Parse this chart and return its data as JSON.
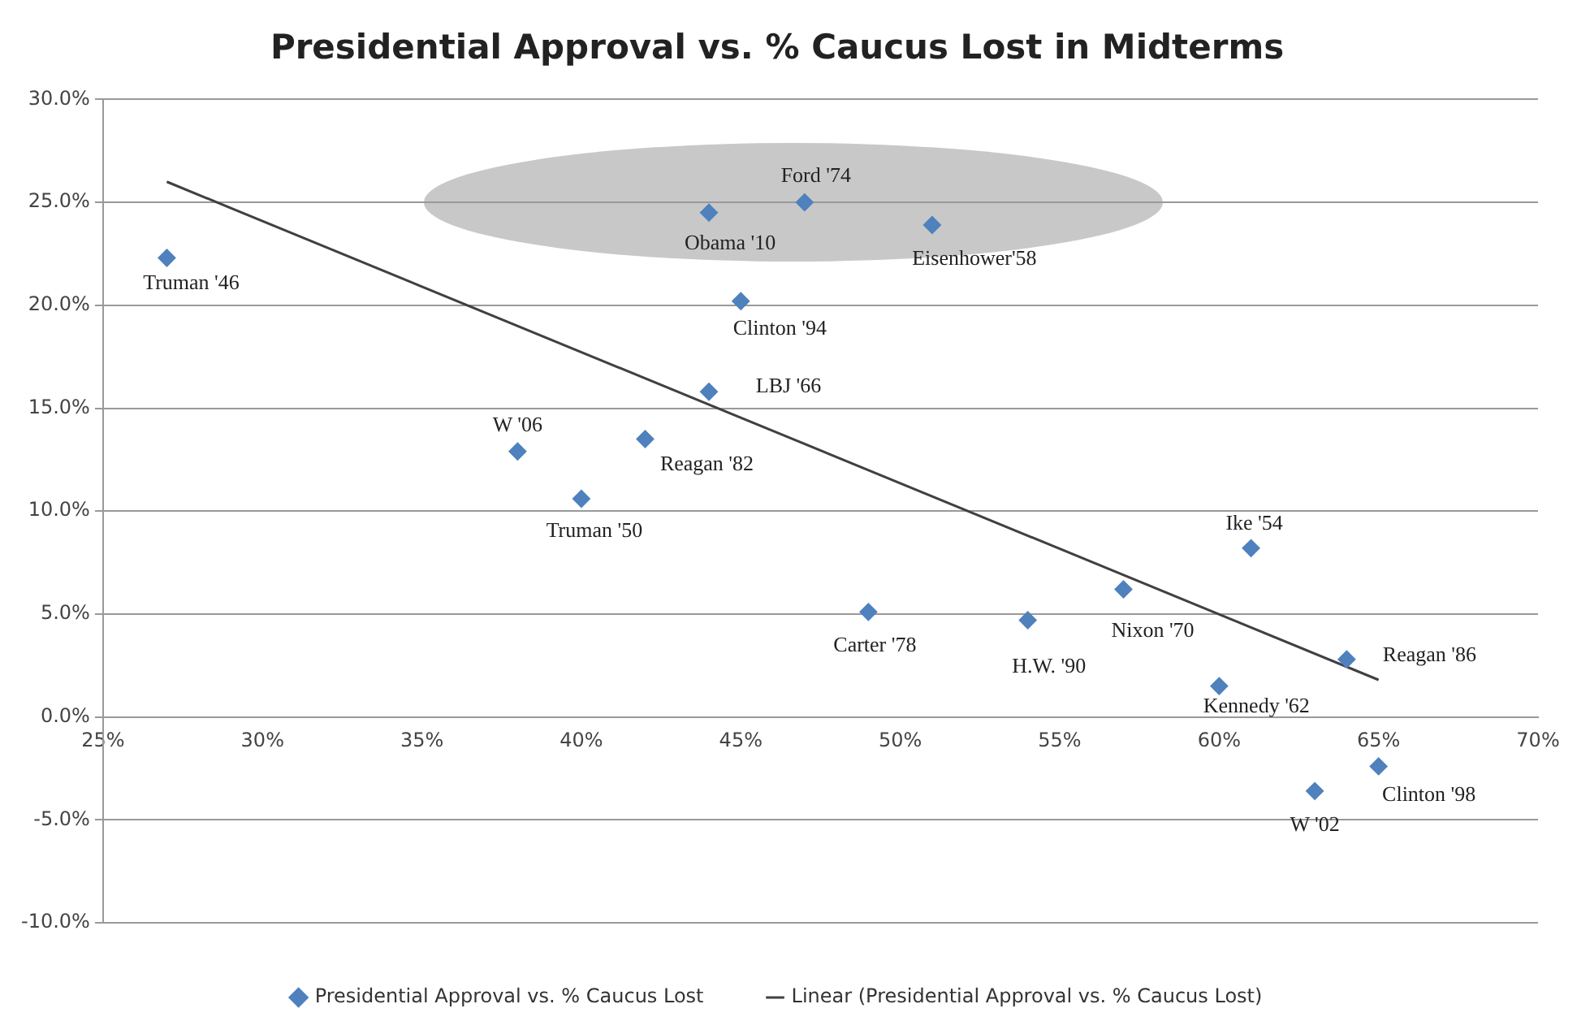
{
  "chart_data": {
    "type": "scatter",
    "title": "Presidential Approval vs. % Caucus Lost in Midterms",
    "xlim": [
      25,
      70
    ],
    "xticks": [
      {
        "value": 25,
        "label": "25%"
      },
      {
        "value": 30,
        "label": "30%"
      },
      {
        "value": 35,
        "label": "35%"
      },
      {
        "value": 40,
        "label": "40%"
      },
      {
        "value": 45,
        "label": "45%"
      },
      {
        "value": 50,
        "label": "50%"
      },
      {
        "value": 55,
        "label": "55%"
      },
      {
        "value": 60,
        "label": "60%"
      },
      {
        "value": 65,
        "label": "65%"
      },
      {
        "value": 70,
        "label": "70%"
      }
    ],
    "ylim": [
      -10,
      30
    ],
    "yticks": [
      {
        "value": -10,
        "label": "-10.0%"
      },
      {
        "value": -5,
        "label": "-5.0%"
      },
      {
        "value": 0,
        "label": "0.0%"
      },
      {
        "value": 5,
        "label": "5.0%"
      },
      {
        "value": 10,
        "label": "10.0%"
      },
      {
        "value": 15,
        "label": "15.0%"
      },
      {
        "value": 20,
        "label": "20.0%"
      },
      {
        "value": 25,
        "label": "25.0%"
      },
      {
        "value": 30,
        "label": "30.0%"
      }
    ],
    "grid": "y",
    "legend": "bottom",
    "series": [
      {
        "name": "Presidential Approval vs. % Caucus Lost",
        "marker": "diamond",
        "color": "#4f81bd",
        "x": [
          27,
          44,
          47,
          51,
          45,
          44,
          38,
          42,
          40,
          49,
          54,
          57,
          61,
          64,
          60,
          65,
          63
        ],
        "values": [
          22.3,
          24.5,
          25.0,
          23.9,
          20.2,
          15.8,
          12.9,
          13.5,
          10.6,
          5.1,
          4.7,
          6.2,
          8.2,
          2.8,
          1.5,
          -2.4,
          -3.6
        ]
      },
      {
        "name": "Linear (Presidential Approval vs. % Caucus Lost)",
        "type": "line",
        "marker": "none",
        "line_style": "solid",
        "color": "#404040",
        "x": [
          27,
          65
        ],
        "values": [
          26.0,
          1.8
        ]
      }
    ],
    "annotations": [
      {
        "text": "Truman '46",
        "x": 27,
        "y": 22.3
      },
      {
        "text": "Obama '10",
        "x": 44,
        "y": 24.5
      },
      {
        "text": "Ford '74",
        "x": 47,
        "y": 25.0
      },
      {
        "text": "Eisenhower'58",
        "x": 51,
        "y": 23.9
      },
      {
        "text": "Clinton '94",
        "x": 45,
        "y": 20.2
      },
      {
        "text": "LBJ '66",
        "x": 44,
        "y": 15.8
      },
      {
        "text": "W '06",
        "x": 38,
        "y": 12.9
      },
      {
        "text": "Reagan '82",
        "x": 42,
        "y": 13.5
      },
      {
        "text": "Truman '50",
        "x": 40,
        "y": 10.6
      },
      {
        "text": "Carter '78",
        "x": 49,
        "y": 5.1
      },
      {
        "text": "H.W. '90",
        "x": 54,
        "y": 4.7
      },
      {
        "text": "Nixon '70",
        "x": 57,
        "y": 6.2
      },
      {
        "text": "Ike '54",
        "x": 61,
        "y": 8.2
      },
      {
        "text": "Reagan '86",
        "x": 64,
        "y": 2.8
      },
      {
        "text": "Kennedy '62",
        "x": 60,
        "y": 1.5
      },
      {
        "text": "Clinton '98",
        "x": 65,
        "y": -2.4
      },
      {
        "text": "W '02",
        "x": 63,
        "y": -3.6
      }
    ]
  }
}
